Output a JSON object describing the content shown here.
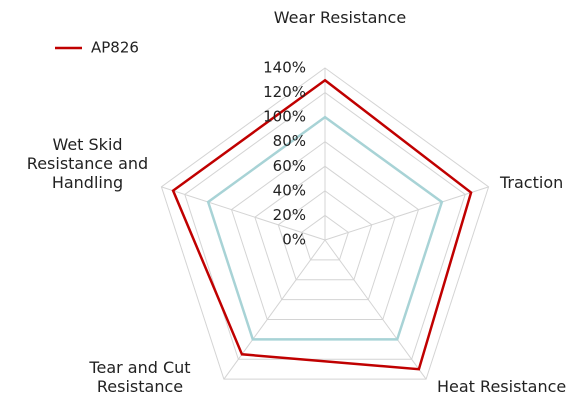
{
  "chart_data": {
    "type": "radar",
    "categories": [
      "Wear Resistance",
      "Traction",
      "Heat  Resistance",
      "Tear and Cut Resistance",
      "Wet Skid Resistance and Handling"
    ],
    "series": [
      {
        "name": "AP826",
        "color": "#c00000",
        "values": [
          130,
          125,
          130,
          115,
          130
        ]
      },
      {
        "color": "#a8d3d6",
        "values": [
          100,
          100,
          100,
          100,
          100
        ]
      }
    ],
    "rlim": [
      0,
      140
    ],
    "rticks": [
      {
        "value": 0,
        "label": "0%"
      },
      {
        "value": 20,
        "label": "20%"
      },
      {
        "value": 40,
        "label": "40%"
      },
      {
        "value": 60,
        "label": "60%"
      },
      {
        "value": 80,
        "label": "80%"
      },
      {
        "value": 100,
        "label": "100%"
      },
      {
        "value": 120,
        "label": "120%"
      },
      {
        "value": 140,
        "label": "140%"
      }
    ],
    "grid": true,
    "legend": "upper left"
  }
}
